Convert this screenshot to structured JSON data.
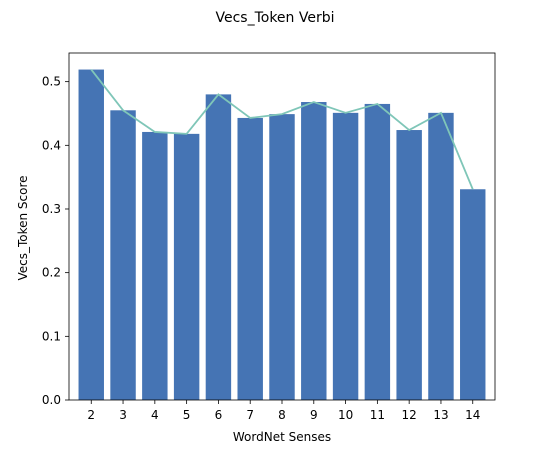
{
  "chart_data": {
    "type": "bar",
    "title": "Vecs_Token Verbi",
    "xlabel": "WordNet Senses",
    "ylabel": "Vecs_Token Score",
    "categories": [
      "2",
      "3",
      "4",
      "5",
      "6",
      "7",
      "8",
      "9",
      "10",
      "11",
      "12",
      "13",
      "14"
    ],
    "values": [
      0.519,
      0.455,
      0.421,
      0.418,
      0.48,
      0.443,
      0.449,
      0.468,
      0.451,
      0.465,
      0.424,
      0.451,
      0.331
    ],
    "overlay_line": true,
    "ylim": [
      0,
      0.545
    ],
    "yticks": [
      0.0,
      0.1,
      0.2,
      0.3,
      0.4,
      0.5
    ],
    "ytick_labels": [
      "0.0",
      "0.1",
      "0.2",
      "0.3",
      "0.4",
      "0.5"
    ],
    "colors": {
      "bar": "#4574b4",
      "line": "#7fc6b8"
    }
  }
}
